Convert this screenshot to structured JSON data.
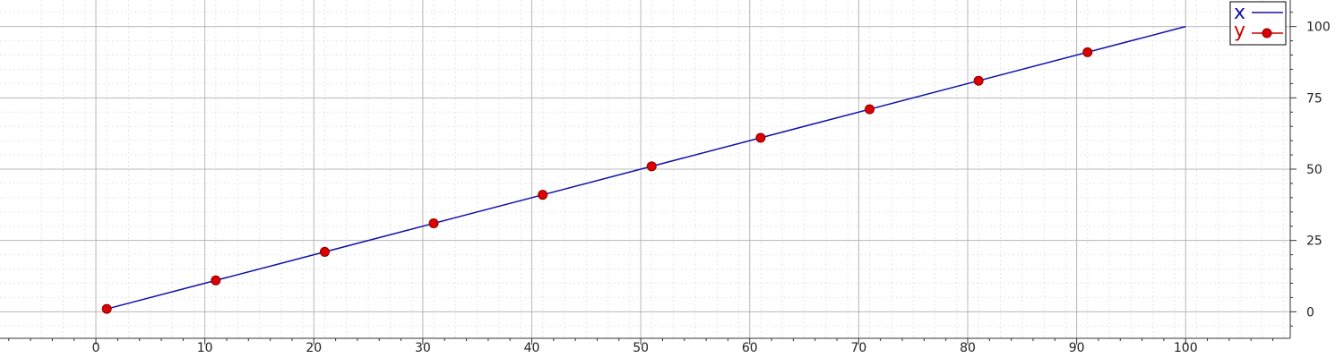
{
  "chart_data": {
    "type": "line",
    "title": "",
    "xlabel": "",
    "ylabel": "",
    "xlim": [
      -8.8,
      109.6
    ],
    "ylim": [
      -9.3,
      109.3
    ],
    "x_ticks": [
      0,
      10,
      20,
      30,
      40,
      50,
      60,
      70,
      80,
      90,
      100
    ],
    "y_ticks": [
      0,
      25,
      50,
      75,
      100
    ],
    "y_axis_side": "right",
    "grid": true,
    "minor_grid": true,
    "legend": "top-right",
    "series": [
      {
        "name": "x",
        "color": "#1010aa",
        "marker": "none",
        "x": [
          1,
          100
        ],
        "y": [
          1,
          100
        ]
      },
      {
        "name": "y",
        "color": "#cc0000",
        "marker": "circle",
        "line": "none",
        "x": [
          1,
          11,
          21,
          31,
          41,
          51,
          61,
          71,
          81,
          91
        ],
        "y": [
          1,
          11,
          21,
          31,
          41,
          51,
          61,
          71,
          81,
          91
        ]
      }
    ]
  }
}
